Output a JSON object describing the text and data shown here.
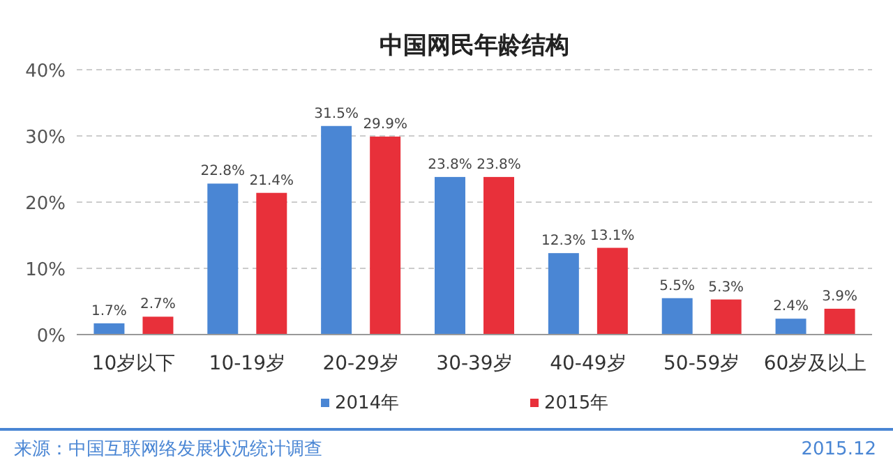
{
  "chart_data": {
    "type": "bar",
    "title": "中国网民年龄结构",
    "categories": [
      "10岁以下",
      "10-19岁",
      "20-29岁",
      "30-39岁",
      "40-49岁",
      "50-59岁",
      "60岁及以上"
    ],
    "series": [
      {
        "name": "2014年",
        "color": "#4a86d4",
        "values": [
          1.7,
          22.8,
          31.5,
          23.8,
          12.3,
          5.5,
          2.4
        ],
        "value_labels": [
          "1.7%",
          "22.8%",
          "31.5%",
          "23.8%",
          "12.3%",
          "5.5%",
          "2.4%"
        ]
      },
      {
        "name": "2015年",
        "color": "#e8303a",
        "values": [
          2.7,
          21.4,
          29.9,
          23.8,
          13.1,
          5.3,
          3.9
        ],
        "value_labels": [
          "2.7%",
          "21.4%",
          "29.9%",
          "23.8%",
          "13.1%",
          "5.3%",
          "3.9%"
        ]
      }
    ],
    "ylim": [
      0,
      40
    ],
    "yticks": [
      {
        "value": 0,
        "label": "0%"
      },
      {
        "value": 10,
        "label": "10%"
      },
      {
        "value": 20,
        "label": "20%"
      },
      {
        "value": 30,
        "label": "30%"
      },
      {
        "value": 40,
        "label": "40%"
      }
    ],
    "grid": "y",
    "legend": "bottom",
    "annotations": [
      "来源：中国互联网络发展状况统计调查",
      "2015.12"
    ]
  }
}
